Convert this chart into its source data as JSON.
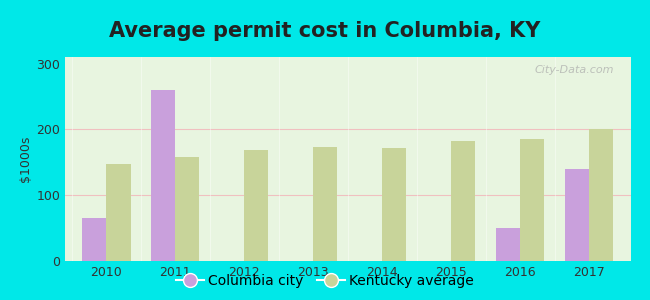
{
  "title": "Average permit cost in Columbia, KY",
  "ylabel": "$1000s",
  "years": [
    2010,
    2011,
    2012,
    2013,
    2014,
    2015,
    2016,
    2017
  ],
  "columbia_values": [
    65,
    260,
    null,
    null,
    null,
    null,
    50,
    140
  ],
  "kentucky_values": [
    148,
    158,
    168,
    173,
    172,
    182,
    185,
    200
  ],
  "columbia_color": "#c9a0dc",
  "kentucky_color": "#c8d49a",
  "background_color": "#00e8e8",
  "plot_bg_top": "#f8fff8",
  "plot_bg_bottom": "#e8f5e0",
  "ylim": [
    0,
    310
  ],
  "yticks": [
    0,
    100,
    200,
    300
  ],
  "bar_width": 0.35,
  "title_fontsize": 15,
  "label_fontsize": 9,
  "watermark": "City-Data.com",
  "grid_color": "#e0e8d0",
  "title_color": "#222222"
}
